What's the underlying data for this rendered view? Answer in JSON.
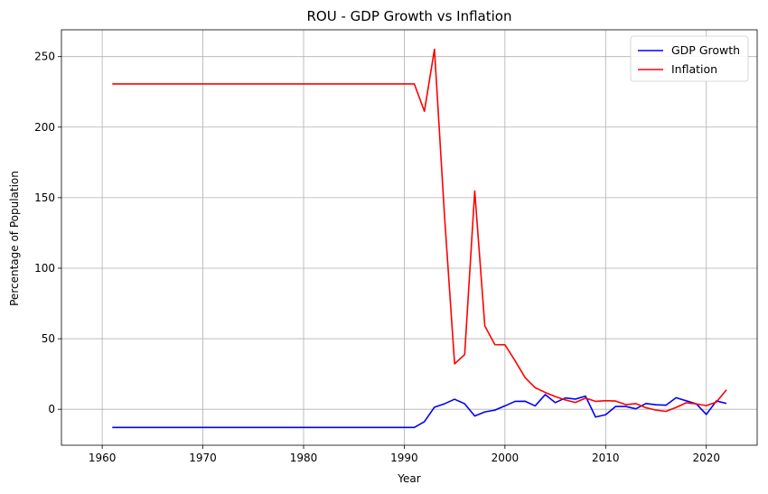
{
  "chart_data": {
    "type": "line",
    "title": "ROU - GDP Growth vs Inflation",
    "xlabel": "Year",
    "ylabel": "Percentage of Population",
    "xlim": [
      1955.95,
      2025.05
    ],
    "ylim": [
      -25.5,
      269.0
    ],
    "xticks": [
      1960,
      1970,
      1980,
      1990,
      2000,
      2010,
      2020
    ],
    "yticks": [
      0,
      50,
      100,
      150,
      200,
      250
    ],
    "grid": true,
    "legend_position": "top-right",
    "colors": {
      "gdp": "#0000ff",
      "inflation": "#ff0000",
      "grid": "#b0b0b0"
    },
    "series": [
      {
        "key": "gdp",
        "name": "GDP Growth",
        "points": [
          [
            1961,
            -12.9
          ],
          [
            1991,
            -12.9
          ],
          [
            1992,
            -8.8
          ],
          [
            1993,
            1.5
          ],
          [
            1994,
            3.9
          ],
          [
            1995,
            7.1
          ],
          [
            1996,
            3.9
          ],
          [
            1997,
            -4.8
          ],
          [
            1998,
            -1.9
          ],
          [
            1999,
            -0.6
          ],
          [
            2000,
            2.4
          ],
          [
            2001,
            5.6
          ],
          [
            2002,
            5.7
          ],
          [
            2003,
            2.4
          ],
          [
            2004,
            10.4
          ],
          [
            2005,
            4.7
          ],
          [
            2006,
            8.0
          ],
          [
            2007,
            7.2
          ],
          [
            2008,
            9.3
          ],
          [
            2009,
            -5.5
          ],
          [
            2010,
            -3.9
          ],
          [
            2011,
            2.0
          ],
          [
            2012,
            2.0
          ],
          [
            2013,
            0.3
          ],
          [
            2014,
            4.1
          ],
          [
            2015,
            3.2
          ],
          [
            2016,
            2.9
          ],
          [
            2017,
            8.2
          ],
          [
            2018,
            6.0
          ],
          [
            2019,
            3.9
          ],
          [
            2020,
            -3.7
          ],
          [
            2021,
            5.9
          ],
          [
            2022,
            4.1
          ]
        ]
      },
      {
        "key": "inflation",
        "name": "Inflation",
        "points": [
          [
            1961,
            230.6
          ],
          [
            1991,
            230.6
          ],
          [
            1992,
            211.2
          ],
          [
            1993,
            255.2
          ],
          [
            1994,
            136.8
          ],
          [
            1995,
            32.2
          ],
          [
            1996,
            38.8
          ],
          [
            1997,
            154.8
          ],
          [
            1998,
            59.1
          ],
          [
            1999,
            45.8
          ],
          [
            2000,
            45.7
          ],
          [
            2001,
            34.5
          ],
          [
            2002,
            22.5
          ],
          [
            2003,
            15.3
          ],
          [
            2004,
            11.9
          ],
          [
            2005,
            9.0
          ],
          [
            2006,
            6.6
          ],
          [
            2007,
            4.8
          ],
          [
            2008,
            7.9
          ],
          [
            2009,
            5.6
          ],
          [
            2010,
            6.1
          ],
          [
            2011,
            5.8
          ],
          [
            2012,
            3.3
          ],
          [
            2013,
            4.0
          ],
          [
            2014,
            1.1
          ],
          [
            2015,
            -0.6
          ],
          [
            2016,
            -1.5
          ],
          [
            2017,
            1.3
          ],
          [
            2018,
            4.6
          ],
          [
            2019,
            3.8
          ],
          [
            2020,
            2.6
          ],
          [
            2021,
            5.1
          ],
          [
            2022,
            13.8
          ]
        ]
      }
    ]
  }
}
